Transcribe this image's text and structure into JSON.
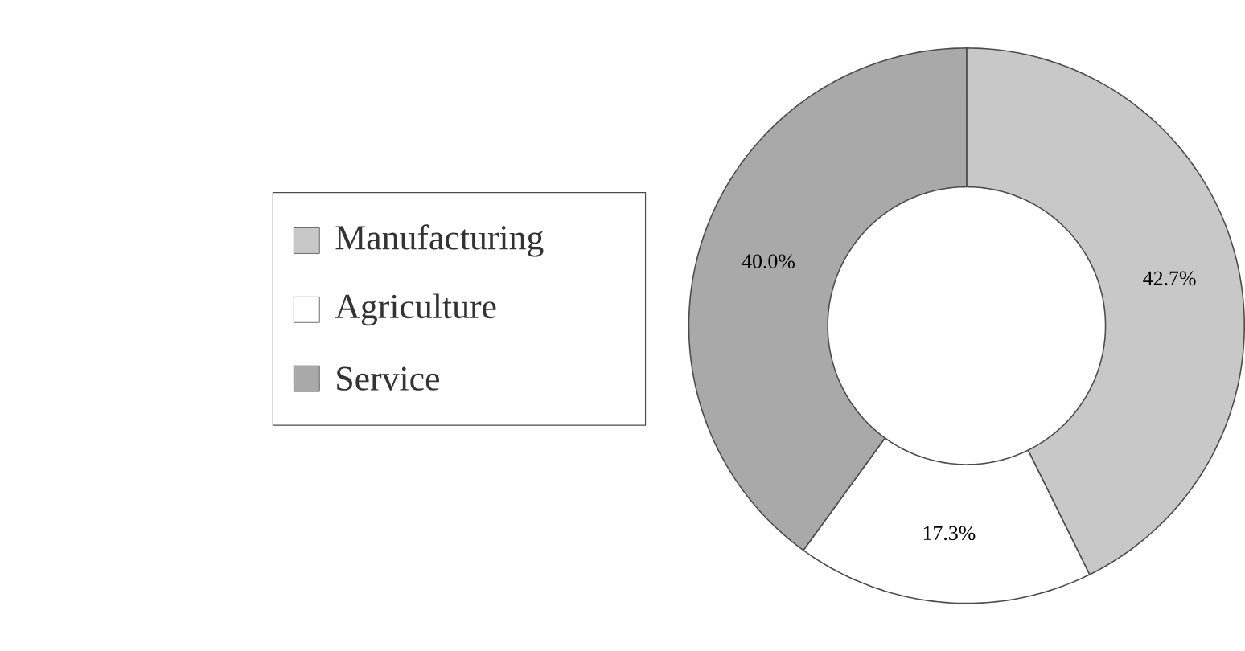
{
  "chart_data": {
    "type": "donut",
    "categories": [
      "Manufacturing",
      "Agriculture",
      "Service"
    ],
    "values": [
      42.7,
      17.3,
      40.0
    ],
    "colors": [
      "#c8c8c8",
      "#ffffff",
      "#a9a9a9"
    ],
    "value_labels": [
      "42.7%",
      "17.3%",
      "40.0%"
    ],
    "legend": "left"
  }
}
